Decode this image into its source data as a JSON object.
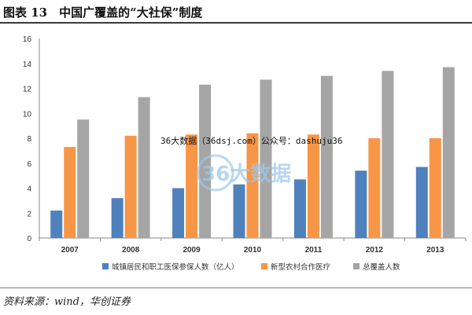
{
  "header": {
    "title": "图表 13　中国广覆盖的“大社保”制度"
  },
  "source": {
    "text": "资料来源：wind，华创证券"
  },
  "watermark": {
    "text": "36大数据（36dsj.com）公众号：dashuju36",
    "logo_text": "36大数据"
  },
  "colors": {
    "series1": "#4F81BD",
    "series2": "#F79646",
    "series3": "#A5A5A5",
    "grid": "#d9d9d9",
    "axis": "#888888"
  },
  "chart_data": {
    "type": "bar",
    "title": "",
    "xlabel": "",
    "ylabel": "",
    "categories": [
      "2007",
      "2008",
      "2009",
      "2010",
      "2011",
      "2012",
      "2013"
    ],
    "ylim": [
      0,
      16
    ],
    "yticks": [
      "0",
      "2",
      "4",
      "6",
      "8",
      "10",
      "12",
      "14",
      "16"
    ],
    "grid": false,
    "legend": "bottom",
    "series": [
      {
        "name": "城镇居民和职工医保参保人数（亿人）",
        "values": [
          2.2,
          3.2,
          4.0,
          4.3,
          4.7,
          5.4,
          5.7
        ]
      },
      {
        "name": "新型农村合作医疗",
        "values": [
          7.3,
          8.2,
          8.3,
          8.4,
          8.3,
          8.0,
          8.0
        ]
      },
      {
        "name": "总覆盖人数",
        "values": [
          9.5,
          11.3,
          12.3,
          12.7,
          13.0,
          13.4,
          13.7
        ]
      }
    ]
  }
}
